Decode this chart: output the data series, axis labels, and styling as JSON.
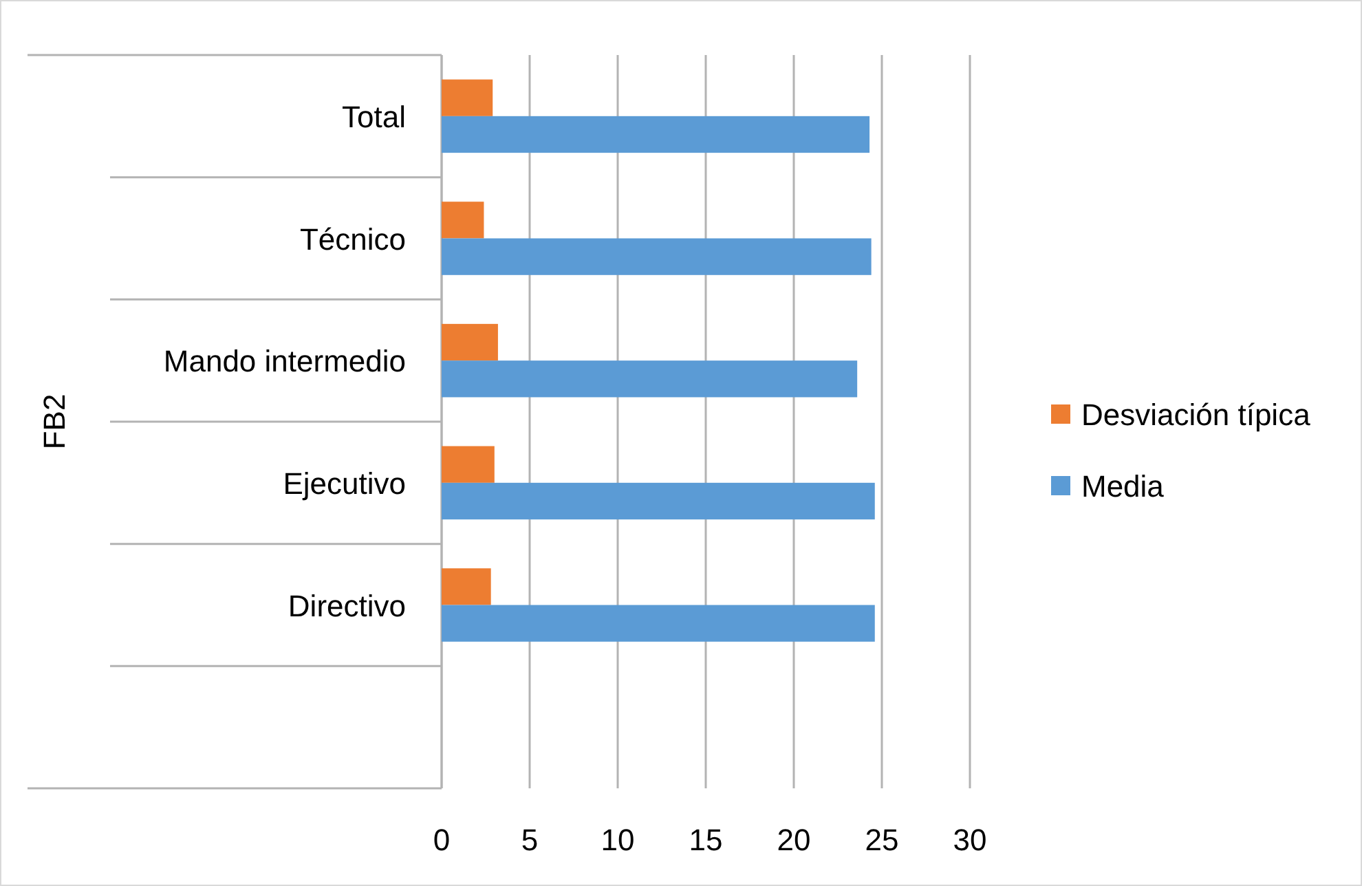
{
  "chart_data": {
    "type": "bar",
    "orientation": "horizontal",
    "ylabel": "FB2",
    "categories": [
      "Total",
      "Técnico",
      "Mando intermedio",
      "Ejecutivo",
      "Directivo",
      null
    ],
    "series": [
      {
        "name": "Desviación típica",
        "color": "#ed7d31",
        "values": [
          2.9,
          2.4,
          3.2,
          3.0,
          2.8,
          null
        ]
      },
      {
        "name": "Media",
        "color": "#5b9bd5",
        "values": [
          24.3,
          24.4,
          23.6,
          24.6,
          24.6,
          null
        ]
      }
    ],
    "xlim": [
      0,
      30
    ],
    "xticks": [
      0,
      5,
      10,
      15,
      20,
      25,
      30
    ],
    "grid": "x",
    "legend": "right"
  }
}
